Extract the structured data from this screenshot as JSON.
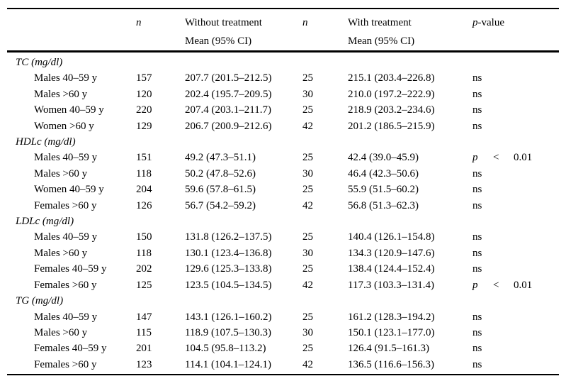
{
  "page": {
    "background_color": "#ffffff",
    "text_color": "#000000"
  },
  "table": {
    "header": {
      "label_col": "",
      "n_without_label": "n",
      "without_treatment": {
        "line1": "Without treatment",
        "line2": "Mean (95% CI)"
      },
      "n_with_label": "n",
      "with_treatment": {
        "line1": "With treatment",
        "line2": "Mean (95% CI)"
      },
      "p_value": {
        "italic_part": "p",
        "rest_part": "-value"
      }
    },
    "sections": [
      {
        "title": "TC (mg/dl)",
        "rows": [
          {
            "label": "Males 40–59 y",
            "n_without": "157",
            "without_mean_ci": "207.7 (201.5–212.5)",
            "n_with": "25",
            "with_mean_ci": "215.1 (203.4–226.8)",
            "p_value": "ns"
          },
          {
            "label": "Males >60 y",
            "n_without": "120",
            "without_mean_ci": "202.4 (195.7–209.5)",
            "n_with": "30",
            "with_mean_ci": "210.0 (197.2–222.9)",
            "p_value": "ns"
          },
          {
            "label": "Women 40–59 y",
            "n_without": "220",
            "without_mean_ci": "207.4 (203.1–211.7)",
            "n_with": "25",
            "with_mean_ci": "218.9 (203.2–234.6)",
            "p_value": "ns"
          },
          {
            "label": "Women >60 y",
            "n_without": "129",
            "without_mean_ci": "206.7 (200.9–212.6)",
            "n_with": "42",
            "with_mean_ci": "201.2 (186.5–215.9)",
            "p_value": "ns"
          }
        ]
      },
      {
        "title": "HDLc (mg/dl)",
        "rows": [
          {
            "label": "Males 40–59 y",
            "n_without": "151",
            "without_mean_ci": "49.2 (47.3–51.1)",
            "n_with": "25",
            "with_mean_ci": "42.4 (39.0–45.9)",
            "p_value": "p < 0.01"
          },
          {
            "label": "Males >60 y",
            "n_without": "118",
            "without_mean_ci": "50.2 (47.8–52.6)",
            "n_with": "30",
            "with_mean_ci": "46.4 (42.3–50.6)",
            "p_value": "ns"
          },
          {
            "label": "Women 40–59 y",
            "n_without": "204",
            "without_mean_ci": "59.6 (57.8–61.5)",
            "n_with": "25",
            "with_mean_ci": "55.9 (51.5–60.2)",
            "p_value": "ns"
          },
          {
            "label": "Females >60 y",
            "n_without": "126",
            "without_mean_ci": "56.7 (54.2–59.2)",
            "n_with": "42",
            "with_mean_ci": "56.8 (51.3–62.3)",
            "p_value": "ns"
          }
        ]
      },
      {
        "title": "LDLc (mg/dl)",
        "rows": [
          {
            "label": "Males 40–59 y",
            "n_without": "150",
            "without_mean_ci": "131.8 (126.2–137.5)",
            "n_with": "25",
            "with_mean_ci": "140.4 (126.1–154.8)",
            "p_value": "ns"
          },
          {
            "label": "Males >60 y",
            "n_without": "118",
            "without_mean_ci": "130.1 (123.4–136.8)",
            "n_with": "30",
            "with_mean_ci": "134.3 (120.9–147.6)",
            "p_value": "ns"
          },
          {
            "label": "Females 40–59 y",
            "n_without": "202",
            "without_mean_ci": "129.6 (125.3–133.8)",
            "n_with": "25",
            "with_mean_ci": "138.4 (124.4–152.4)",
            "p_value": "ns"
          },
          {
            "label": "Females >60 y",
            "n_without": "125",
            "without_mean_ci": "123.5 (104.5–134.5)",
            "n_with": "42",
            "with_mean_ci": "117.3 (103.3–131.4)",
            "p_value": "p < 0.01"
          }
        ]
      },
      {
        "title": "TG (mg/dl)",
        "rows": [
          {
            "label": "Males 40–59 y",
            "n_without": "147",
            "without_mean_ci": "143.1 (126.1–160.2)",
            "n_with": "25",
            "with_mean_ci": "161.2 (128.3–194.2)",
            "p_value": "ns"
          },
          {
            "label": "Males >60 y",
            "n_without": "115",
            "without_mean_ci": "118.9 (107.5–130.3)",
            "n_with": "30",
            "with_mean_ci": "150.1 (123.1–177.0)",
            "p_value": "ns"
          },
          {
            "label": "Females 40–59 y",
            "n_without": "201",
            "without_mean_ci": "104.5 (95.8–113.2)",
            "n_with": "25",
            "with_mean_ci": "126.4 (91.5–161.3)",
            "p_value": "ns"
          },
          {
            "label": "Females >60 y",
            "n_without": "123",
            "without_mean_ci": "114.1 (104.1–124.1)",
            "n_with": "42",
            "with_mean_ci": "136.5 (116.6–156.3)",
            "p_value": "ns"
          }
        ]
      }
    ]
  }
}
